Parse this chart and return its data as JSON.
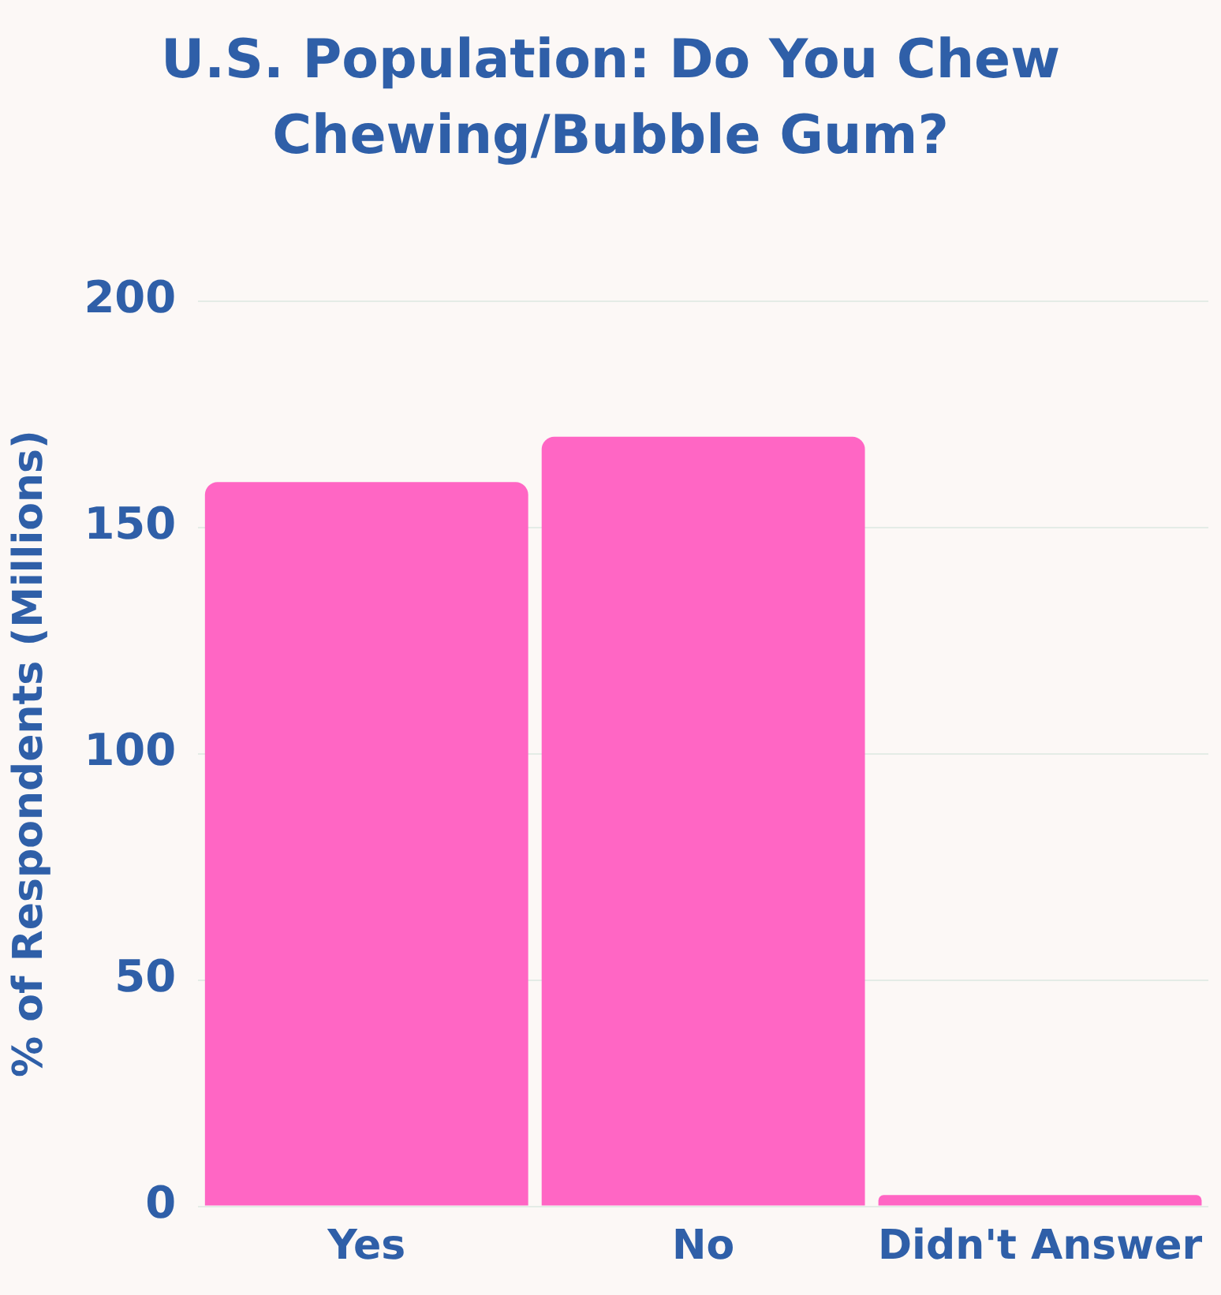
{
  "chart_data": {
    "type": "bar",
    "title": "U.S. Population: Do You Chew Chewing/Bubble Gum?",
    "ylabel": "% of Respondents (Millions)",
    "categories": [
      "Yes",
      "No",
      "Didn't Answer"
    ],
    "values": [
      160,
      170,
      2.5
    ],
    "color": "#ff66c4",
    "ylim": [
      0,
      200
    ],
    "yticks": [
      0,
      50,
      100,
      150,
      200
    ],
    "grid": "y"
  }
}
